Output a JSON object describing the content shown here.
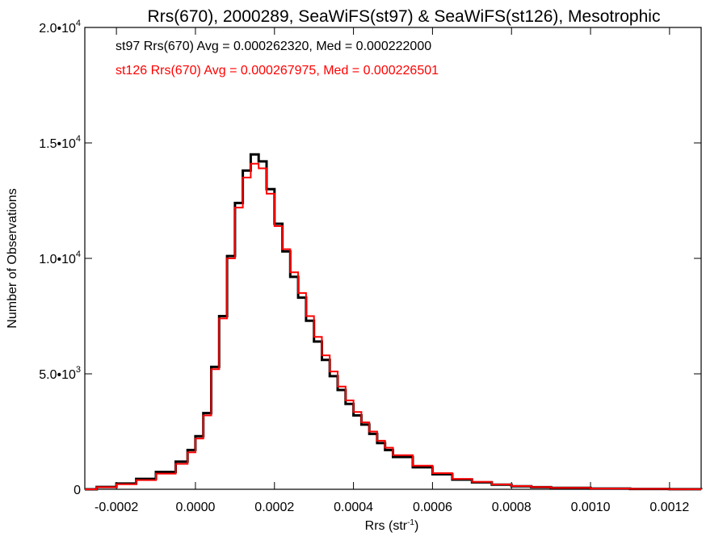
{
  "chart_data": {
    "type": "line",
    "title": "Rrs(670), 2000289, SeaWiFS(st97) & SeaWiFS(st126), Mesotrophic",
    "xlabel_main": "Rrs (str",
    "xlabel_sup": "-1",
    "xlabel_close": ")",
    "ylabel": "Number of Observations",
    "xlim": [
      -0.00028,
      0.00128
    ],
    "ylim": [
      0,
      20000
    ],
    "x_ticks": [
      {
        "value": -0.0002,
        "label": "-0.0002"
      },
      {
        "value": 0.0,
        "label": "0.0000"
      },
      {
        "value": 0.0002,
        "label": "0.0002"
      },
      {
        "value": 0.0004,
        "label": "0.0004"
      },
      {
        "value": 0.0006,
        "label": "0.0006"
      },
      {
        "value": 0.0008,
        "label": "0.0008"
      },
      {
        "value": 0.001,
        "label": "0.0010"
      },
      {
        "value": 0.0012,
        "label": "0.0012"
      }
    ],
    "y_ticks": [
      {
        "value": 0,
        "base": "0",
        "exp": ""
      },
      {
        "value": 5000,
        "base": "5.0•10",
        "exp": "3"
      },
      {
        "value": 10000,
        "base": "1.0•10",
        "exp": "4"
      },
      {
        "value": 15000,
        "base": "1.5•10",
        "exp": "4"
      },
      {
        "value": 20000,
        "base": "2.0•10",
        "exp": "4"
      }
    ],
    "series": [
      {
        "name": "st97 Rrs(670) Avg = 0.000262320, Med = 0.000222000",
        "color": "#000000",
        "x": [
          -0.00028,
          -0.00025,
          -0.0002,
          -0.00015,
          -0.0001,
          -5e-05,
          -2e-05,
          0.0,
          2e-05,
          4e-05,
          6e-05,
          8e-05,
          0.0001,
          0.00012,
          0.00014,
          0.00016,
          0.00018,
          0.0002,
          0.00022,
          0.00024,
          0.00026,
          0.00028,
          0.0003,
          0.00032,
          0.00034,
          0.00036,
          0.00038,
          0.0004,
          0.00042,
          0.00044,
          0.00046,
          0.00048,
          0.0005,
          0.00055,
          0.0006,
          0.00065,
          0.0007,
          0.00075,
          0.0008,
          0.00085,
          0.0009,
          0.001,
          0.0011,
          0.0012,
          0.00128
        ],
        "y": [
          0,
          100,
          250,
          450,
          750,
          1200,
          1700,
          2300,
          3300,
          5300,
          7500,
          10100,
          12400,
          13800,
          14500,
          14200,
          13000,
          11500,
          10300,
          9200,
          8300,
          7300,
          6400,
          5600,
          4900,
          4300,
          3700,
          3200,
          2800,
          2400,
          2000,
          1700,
          1400,
          950,
          650,
          420,
          300,
          200,
          130,
          90,
          60,
          30,
          15,
          5,
          0
        ]
      },
      {
        "name": "st126 Rrs(670) Avg = 0.000267975, Med = 0.000226501",
        "color": "#ff0000",
        "x": [
          -0.00028,
          -0.00025,
          -0.0002,
          -0.00015,
          -0.0001,
          -5e-05,
          -2e-05,
          0.0,
          2e-05,
          4e-05,
          6e-05,
          8e-05,
          0.0001,
          0.00012,
          0.00014,
          0.00016,
          0.00018,
          0.0002,
          0.00022,
          0.00024,
          0.00026,
          0.00028,
          0.0003,
          0.00032,
          0.00034,
          0.00036,
          0.00038,
          0.0004,
          0.00042,
          0.00044,
          0.00046,
          0.00048,
          0.0005,
          0.00055,
          0.0006,
          0.00065,
          0.0007,
          0.00075,
          0.0008,
          0.00085,
          0.0009,
          0.001,
          0.0011,
          0.0012,
          0.00128
        ],
        "y": [
          0,
          90,
          220,
          400,
          680,
          1100,
          1600,
          2200,
          3200,
          5200,
          7400,
          10000,
          12200,
          13500,
          14100,
          13900,
          12800,
          11400,
          10400,
          9400,
          8500,
          7500,
          6600,
          5800,
          5100,
          4450,
          3850,
          3350,
          2900,
          2500,
          2100,
          1800,
          1480,
          1020,
          700,
          450,
          320,
          210,
          140,
          95,
          62,
          32,
          16,
          5,
          0
        ]
      }
    ],
    "legend": {
      "line1": "st97 Rrs(670) Avg = 0.000262320, Med = 0.000222000",
      "line2": "st126 Rrs(670) Avg = 0.000267975, Med = 0.000226501",
      "placement": "top-left"
    },
    "grid": false
  }
}
